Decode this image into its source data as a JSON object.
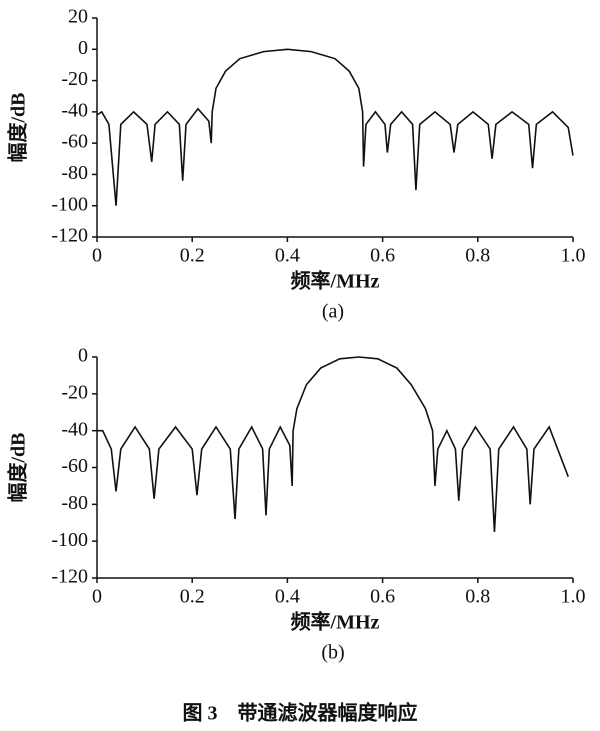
{
  "chart_data": [
    {
      "type": "line",
      "label": "(a)",
      "xlabel": "频率/MHz",
      "ylabel": "幅度/dB",
      "color": "#111111",
      "xlim": [
        0,
        1
      ],
      "xticks": [
        0,
        0.2,
        0.4,
        0.6,
        0.8,
        {
          "value": 1,
          "label": "1.0"
        }
      ],
      "ylim": [
        -120,
        20
      ],
      "yticks": [
        -120,
        -100,
        -80,
        -60,
        -40,
        -20,
        0,
        20
      ],
      "x": [
        0,
        0.01,
        0.025,
        0.04,
        0.05,
        0.077,
        0.105,
        0.115,
        0.122,
        0.148,
        0.173,
        0.18,
        0.187,
        0.212,
        0.235,
        0.24,
        0.242,
        0.25,
        0.27,
        0.3,
        0.35,
        0.4,
        0.45,
        0.5,
        0.53,
        0.55,
        0.558,
        0.56,
        0.565,
        0.585,
        0.605,
        0.61,
        0.617,
        0.64,
        0.663,
        0.67,
        0.678,
        0.71,
        0.742,
        0.75,
        0.758,
        0.79,
        0.822,
        0.83,
        0.838,
        0.872,
        0.907,
        0.915,
        0.923,
        0.957,
        0.99,
        1.0
      ],
      "values": [
        -42,
        -40,
        -48,
        -100,
        -48,
        -40,
        -48,
        -72,
        -48,
        -40,
        -48,
        -84,
        -48,
        -38,
        -46,
        -60,
        -40,
        -25,
        -14,
        -6,
        -1.5,
        0,
        -1.5,
        -6,
        -14,
        -25,
        -40,
        -75,
        -48,
        -40,
        -48,
        -66,
        -48,
        -40,
        -48,
        -90,
        -48,
        -40,
        -48,
        -66,
        -48,
        -40,
        -48,
        -70,
        -48,
        -40,
        -48,
        -76,
        -48,
        -40,
        -50,
        -68
      ]
    },
    {
      "type": "line",
      "label": "(b)",
      "xlabel": "频率/MHz",
      "ylabel": "幅度/dB",
      "color": "#111111",
      "xlim": [
        0,
        1
      ],
      "xticks": [
        0,
        0.2,
        0.4,
        0.6,
        0.8,
        {
          "value": 1,
          "label": "1.0"
        }
      ],
      "ylim": [
        -120,
        0
      ],
      "yticks": [
        -120,
        -100,
        -80,
        -60,
        -40,
        -20,
        0
      ],
      "x": [
        0,
        0.012,
        0.03,
        0.04,
        0.05,
        0.08,
        0.11,
        0.12,
        0.13,
        0.165,
        0.2,
        0.21,
        0.22,
        0.25,
        0.28,
        0.29,
        0.298,
        0.325,
        0.348,
        0.355,
        0.362,
        0.385,
        0.405,
        0.41,
        0.412,
        0.42,
        0.44,
        0.47,
        0.51,
        0.55,
        0.59,
        0.63,
        0.66,
        0.69,
        0.705,
        0.71,
        0.716,
        0.735,
        0.753,
        0.76,
        0.768,
        0.795,
        0.826,
        0.835,
        0.844,
        0.875,
        0.903,
        0.91,
        0.918,
        0.95,
        0.99
      ],
      "values": [
        -40,
        -40,
        -50,
        -73,
        -50,
        -38,
        -50,
        -77,
        -50,
        -38,
        -50,
        -75,
        -50,
        -38,
        -50,
        -88,
        -50,
        -38,
        -50,
        -86,
        -50,
        -38,
        -48,
        -70,
        -40,
        -28,
        -15,
        -6,
        -1,
        0,
        -1,
        -6,
        -15,
        -28,
        -40,
        -70,
        -50,
        -40,
        -50,
        -78,
        -50,
        -38,
        -50,
        -95,
        -50,
        -38,
        -50,
        -80,
        -50,
        -38,
        -65
      ]
    }
  ],
  "caption": "图 3　带通滤波器幅度响应"
}
